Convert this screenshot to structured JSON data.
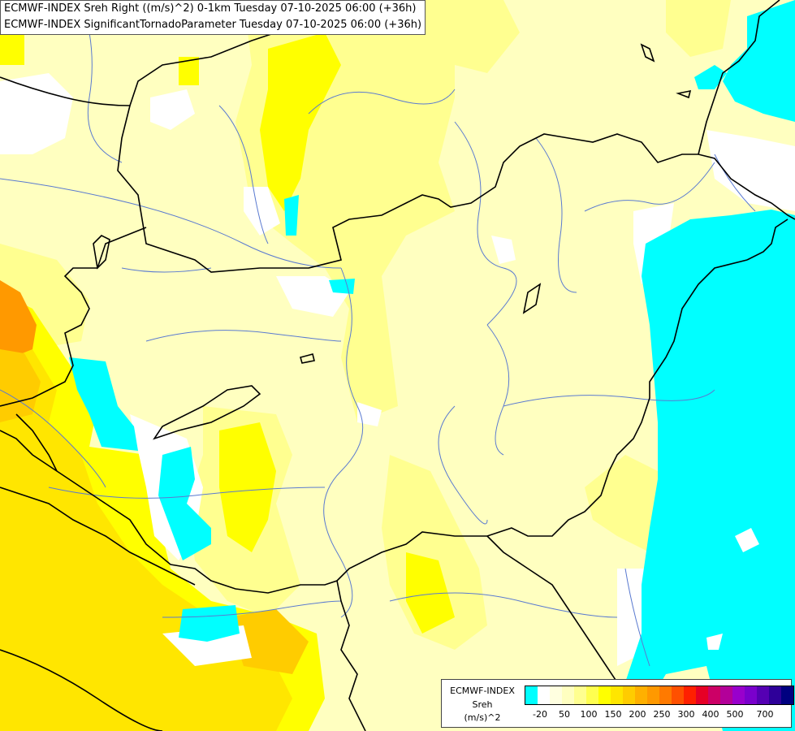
{
  "map": {
    "title_line1": "ECMWF-INDEX Sreh Right ((m/s)^2) 0-1km Tuesday 07-10-2025 06:00 (+36h)",
    "title_line2": "ECMWF-INDEX SignificantTornadoParameter Tuesday 07-10-2025 06:00 (+36h)"
  },
  "legend": {
    "line1": "ECMWF-INDEX",
    "line2": "Sreh",
    "line3": "(m/s)^2",
    "colors": [
      "#00ffff",
      "#ffffff",
      "#ffffe0",
      "#ffffc0",
      "#ffff90",
      "#ffff50",
      "#ffff00",
      "#ffe600",
      "#ffcc00",
      "#ffb000",
      "#ff9900",
      "#ff7a00",
      "#ff5000",
      "#ff2000",
      "#e60026",
      "#cc0066",
      "#b30099",
      "#9900cc",
      "#7a00cc",
      "#5500b3",
      "#2e0099",
      "#000080"
    ],
    "ticks": [
      "-20",
      "50",
      "100",
      "150",
      "200",
      "250",
      "300",
      "400",
      "500",
      "700"
    ]
  },
  "field_colors": {
    "background": "#ffffc0",
    "light_yellow": "#ffff90",
    "yellow": "#ffff00",
    "gold": "#ffe600",
    "orange": "#ff9900",
    "cyan": "#00ffff",
    "white": "#ffffff",
    "border": "#000000",
    "river": "#5a7ad0"
  }
}
